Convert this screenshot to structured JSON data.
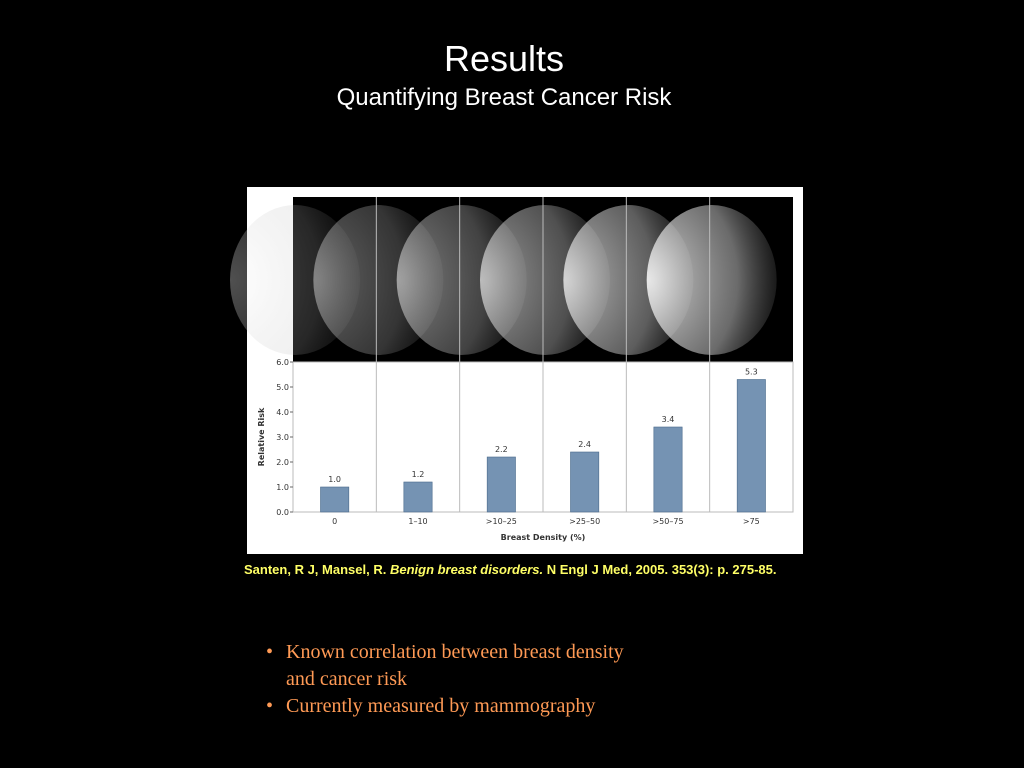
{
  "title": "Results",
  "subtitle": "Quantifying Breast Cancer Risk",
  "citation": {
    "authors": "Santen, R J, Mansel, R.",
    "article": "Benign breast disorders.",
    "source": "N Engl J Med, 2005. 353(3): p. 275-85."
  },
  "bullets": [
    "Known correlation between breast density and cancer risk",
    "Currently measured by mammography"
  ],
  "chart_data": {
    "type": "bar",
    "categories": [
      "0",
      "1–10",
      ">10–25",
      ">25–50",
      ">50–75",
      ">75"
    ],
    "values": [
      1.0,
      1.2,
      2.2,
      2.4,
      3.4,
      5.3
    ],
    "value_labels": [
      "1.0",
      "1.2",
      "2.2",
      "2.4",
      "3.4",
      "5.3"
    ],
    "color": "#7593b3",
    "ylim": [
      0,
      6
    ],
    "yticks": [
      {
        "value": 0,
        "label": "0.0"
      },
      {
        "value": 1,
        "label": "1.0"
      },
      {
        "value": 2,
        "label": "2.0"
      },
      {
        "value": 3,
        "label": "3.0"
      },
      {
        "value": 4,
        "label": "4.0"
      },
      {
        "value": 5,
        "label": "5.0"
      },
      {
        "value": 6,
        "label": "6.0"
      }
    ],
    "xlabel": "Breast Density (%)",
    "ylabel": "Relative Risk"
  }
}
